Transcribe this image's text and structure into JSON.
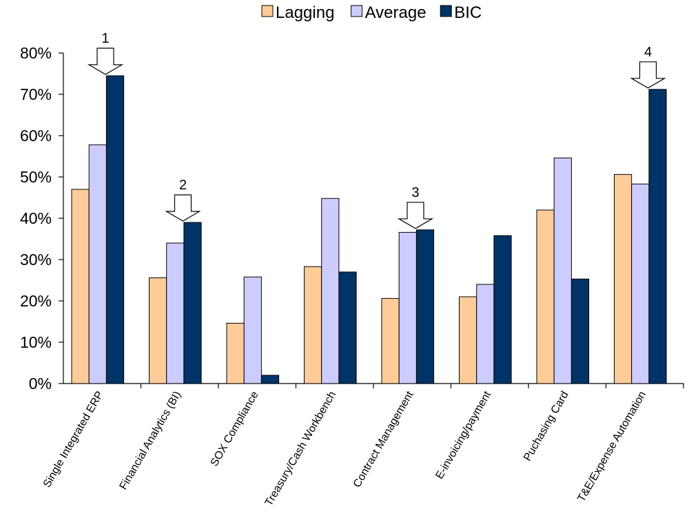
{
  "chart_data": {
    "type": "bar",
    "categories": [
      "Single Integrated ERP",
      "Financial Analytics (BI)",
      "SOX Compliance",
      "Treasury/Cash Workbench",
      "Contract Management",
      "E-invoicing/payment",
      "Puchasing Card",
      "T&E/Expense Automation"
    ],
    "series": [
      {
        "name": "Lagging",
        "color": "#FFCC99",
        "values": [
          47,
          25.6,
          14.6,
          28.3,
          20.6,
          21,
          42,
          50.6
        ]
      },
      {
        "name": "Average",
        "color": "#CCCCFF",
        "values": [
          57.8,
          34,
          25.8,
          44.8,
          36.6,
          24,
          54.6,
          48.3
        ]
      },
      {
        "name": "BIC",
        "color": "#003366",
        "values": [
          74.5,
          39,
          2,
          27,
          37.2,
          35.8,
          25.3,
          71.2
        ]
      }
    ],
    "yticks": [
      "0%",
      "10%",
      "20%",
      "30%",
      "40%",
      "50%",
      "60%",
      "70%",
      "80%"
    ],
    "ylim": [
      0,
      80
    ],
    "legend": "top",
    "grid": false,
    "callouts": [
      {
        "label": "1",
        "category": 0
      },
      {
        "label": "2",
        "category": 1
      },
      {
        "label": "3",
        "category": 4
      },
      {
        "label": "4",
        "category": 7
      }
    ]
  }
}
